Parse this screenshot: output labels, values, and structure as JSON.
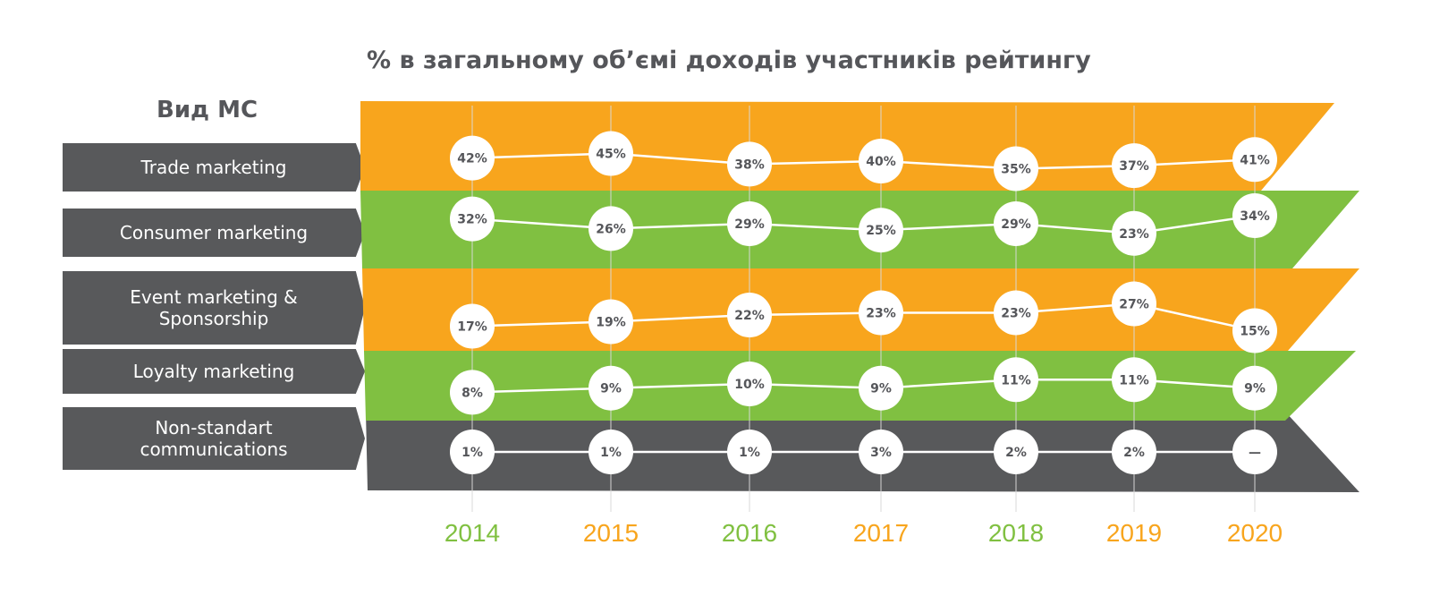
{
  "chart_data": {
    "type": "line",
    "title": "% в загальному об’ємі доходів участників рейтингу",
    "legend_title": "Вид МС",
    "categories": [
      "2014",
      "2015",
      "2016",
      "2017",
      "2018",
      "2019",
      "2020"
    ],
    "series": [
      {
        "name": "Trade marketing",
        "values": [
          42,
          45,
          38,
          40,
          35,
          37,
          41
        ],
        "labels": [
          "42%",
          "45%",
          "38%",
          "40%",
          "35%",
          "37%",
          "41%"
        ],
        "color": "#f8a51d"
      },
      {
        "name": "Consumer marketing",
        "values": [
          32,
          26,
          29,
          25,
          29,
          23,
          34
        ],
        "labels": [
          "32%",
          "26%",
          "29%",
          "25%",
          "29%",
          "23%",
          "34%"
        ],
        "color": "#80c041"
      },
      {
        "name": "Event marketing & Sponsorship",
        "name_lines": [
          "Event marketing &",
          "Sponsorship"
        ],
        "values": [
          17,
          19,
          22,
          23,
          23,
          27,
          15
        ],
        "labels": [
          "17%",
          "19%",
          "22%",
          "23%",
          "23%",
          "27%",
          "15%"
        ],
        "color": "#f8a51d"
      },
      {
        "name": "Loyalty marketing",
        "values": [
          8,
          9,
          10,
          9,
          11,
          11,
          9
        ],
        "labels": [
          "8%",
          "9%",
          "10%",
          "9%",
          "11%",
          "11%",
          "9%"
        ],
        "color": "#80c041"
      },
      {
        "name": "Non-standart communications",
        "name_lines": [
          "Non-standart",
          "communications"
        ],
        "values": [
          1,
          1,
          1,
          3,
          2,
          2,
          null
        ],
        "labels": [
          "1%",
          "1%",
          "1%",
          "3%",
          "2%",
          "2%",
          "—"
        ],
        "color": "#58595b"
      }
    ],
    "year_colors": [
      "#80c041",
      "#f8a51d",
      "#80c041",
      "#f8a51d",
      "#80c041",
      "#f8a51d",
      "#f8a51d"
    ]
  }
}
